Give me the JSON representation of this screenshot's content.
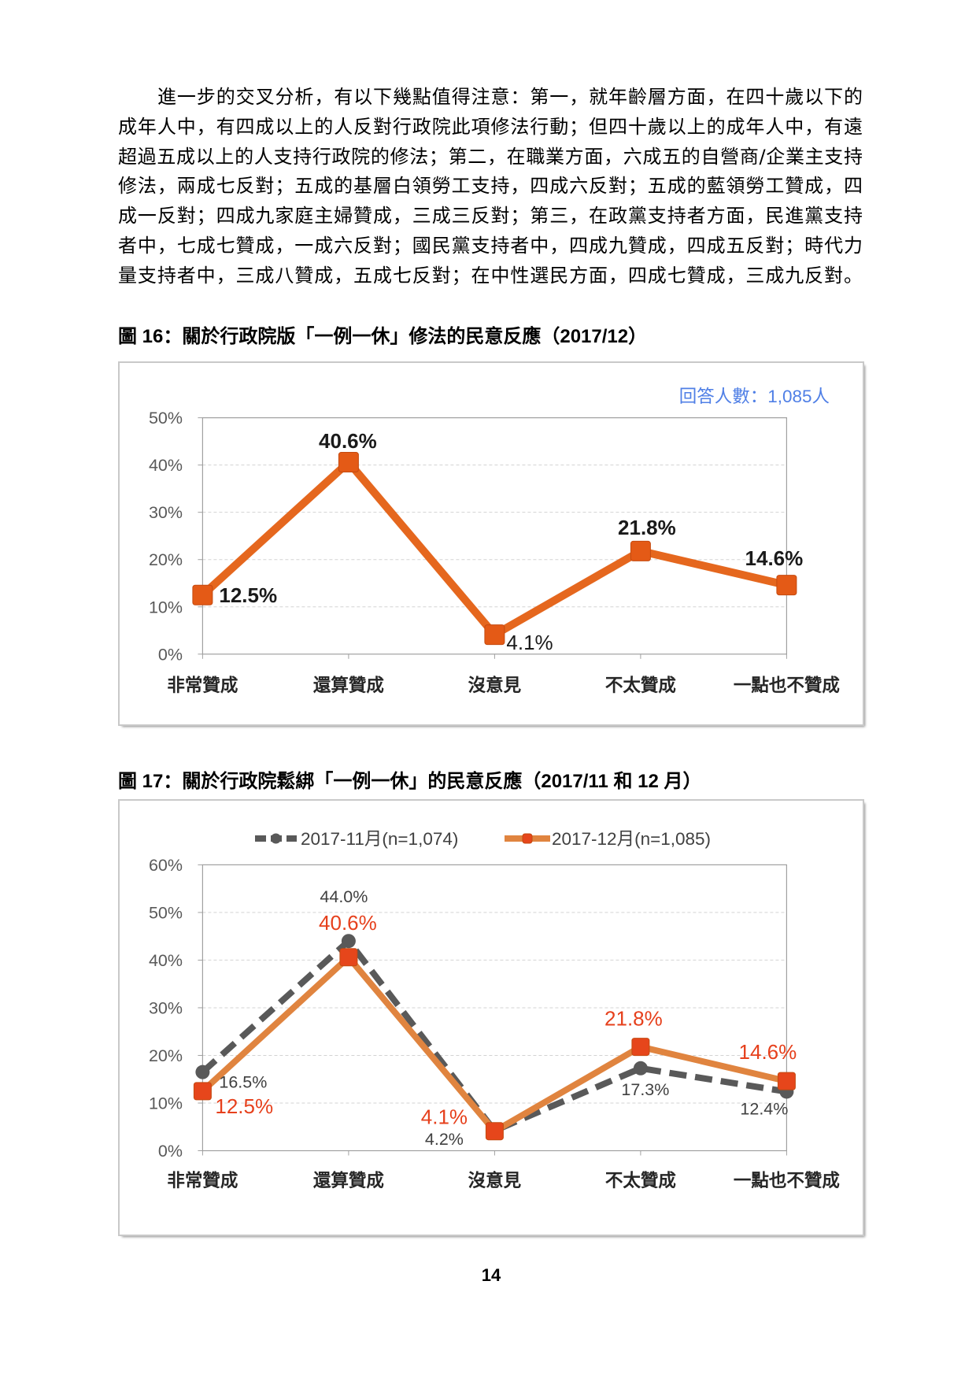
{
  "body": {
    "paragraph_lines": [
      "進一步的交叉分析，有以下幾點值得注意：第一，就年齡層方面，在四十歲以下的",
      "成年人中，有四成以上的人反對行政院此項修法行動；但四十歲以上的成年人中，有遠",
      "超過五成以上的人支持行政院的修法；第二，在職業方面，六成五的自營商/企業主支持",
      "修法，兩成七反對；五成的基層白領勞工支持，四成六反對；五成的藍領勞工贊成，四",
      "成一反對；四成九家庭主婦贊成，三成三反對；第三，在政黨支持者方面，民進黨支持",
      "者中，七成七贊成，一成六反對；國民黨支持者中，四成九贊成，四成五反對；時代力",
      "量支持者中，三成八贊成，五成七反對；在中性選民方面，四成七贊成，三成九反對。"
    ]
  },
  "page": {
    "number": "14"
  },
  "chart_data": [
    {
      "type": "line",
      "title": "圖 16：關於行政院版「一例一休」修法的民意反應（2017/12）",
      "annotation": "回答人數：1,085人",
      "annotation_color": "#4F7FE6",
      "categories": [
        "非常贊成",
        "還算贊成",
        "沒意見",
        "不太贊成",
        "一點也不贊成"
      ],
      "ylim": [
        0,
        50
      ],
      "y_ticks": [
        "0%",
        "10%",
        "20%",
        "30%",
        "40%",
        "50%"
      ],
      "grid": true,
      "legend": "none",
      "series": [
        {
          "values": [
            12.5,
            40.6,
            4.1,
            21.8,
            14.6
          ],
          "labels": [
            "12.5%",
            "40.6%",
            "4.1%",
            "21.8%",
            "14.6%"
          ],
          "line_color": "#E5671E",
          "marker": "square",
          "marker_color": "#E45A16",
          "label_color": "#1A1A1A"
        }
      ]
    },
    {
      "type": "line",
      "title": "圖 17：關於行政院鬆綁「一例一休」的民意反應（2017/11 和 12 月）",
      "categories": [
        "非常贊成",
        "還算贊成",
        "沒意見",
        "不太贊成",
        "一點也不贊成"
      ],
      "ylim": [
        0,
        60
      ],
      "y_ticks": [
        "0%",
        "10%",
        "20%",
        "30%",
        "40%",
        "50%",
        "60%"
      ],
      "grid": true,
      "legend": "top-center",
      "series": [
        {
          "name": "2017-11月(n=1,074)",
          "values": [
            16.5,
            44.0,
            4.2,
            17.3,
            12.4
          ],
          "labels": [
            "16.5%",
            "44.0%",
            "4.2%",
            "17.3%",
            "12.4%"
          ],
          "line_style": "dashed",
          "line_color": "#595959",
          "marker": "circle",
          "marker_color": "#595959",
          "label_color": "#404040"
        },
        {
          "name": "2017-12月(n=1,085)",
          "values": [
            12.5,
            40.6,
            4.1,
            21.8,
            14.6
          ],
          "labels": [
            "12.5%",
            "40.6%",
            "4.1%",
            "21.8%",
            "14.6%"
          ],
          "line_style": "solid",
          "line_color": "#E0843F",
          "marker": "square",
          "marker_color": "#E6461B",
          "label_color": "#E6401C"
        }
      ]
    }
  ]
}
